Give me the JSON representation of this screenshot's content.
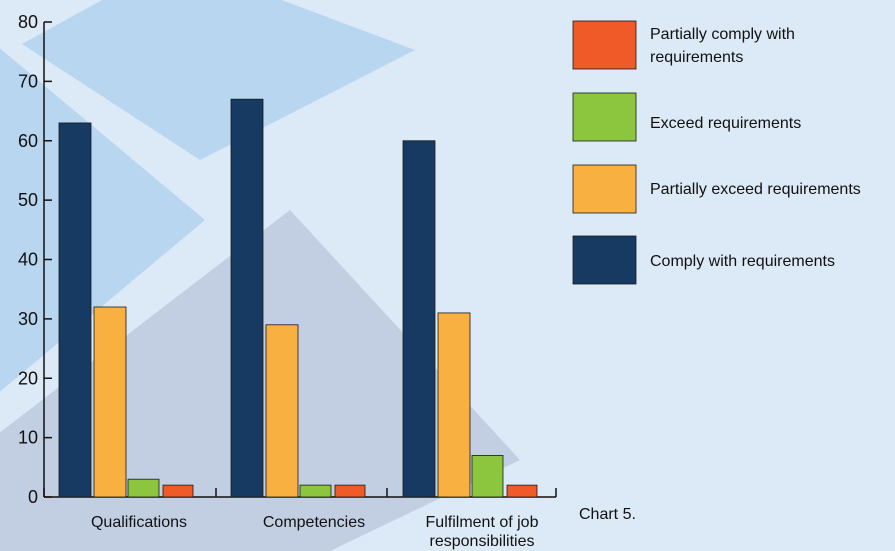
{
  "colors": {
    "background": "#dce9f6",
    "decor_light": "#b9d6f0",
    "decor_dark": "#c2cfe3",
    "comply": "#163a62",
    "partially_exceed": "#f8b040",
    "exceed": "#8cc63e",
    "partially_comply": "#ef5a28"
  },
  "caption": "Chart 5.",
  "chart_data": {
    "type": "bar",
    "categories": [
      [
        "Qualifications"
      ],
      [
        "Competencies"
      ],
      [
        "Fulfilment of job",
        "responsibilities"
      ]
    ],
    "series": [
      {
        "name": "Comply with requirements",
        "values": [
          63,
          67,
          60
        ],
        "color": "#163a62"
      },
      {
        "name": "Partially exceed requirements",
        "values": [
          32,
          29,
          31
        ],
        "color": "#f8b040"
      },
      {
        "name": "Exceed requirements",
        "values": [
          3,
          2,
          7
        ],
        "color": "#8cc63e"
      },
      {
        "name": "Partially comply with requirements",
        "values": [
          2,
          2,
          2
        ],
        "color": "#ef5a28"
      }
    ],
    "legend": [
      {
        "label": [
          "Partially comply with",
          "requirements"
        ],
        "color": "#ef5a28"
      },
      {
        "label": [
          "Exceed requirements"
        ],
        "color": "#8cc63e"
      },
      {
        "label": [
          "Partially exceed requirements"
        ],
        "color": "#f8b040"
      },
      {
        "label": [
          "Comply with requirements"
        ],
        "color": "#163a62"
      }
    ],
    "legend_position": "right",
    "y_ticks": [
      "0",
      "10",
      "20",
      "30",
      "40",
      "50",
      "60",
      "70",
      "80"
    ],
    "ylim": [
      0,
      80
    ],
    "grid": false
  }
}
